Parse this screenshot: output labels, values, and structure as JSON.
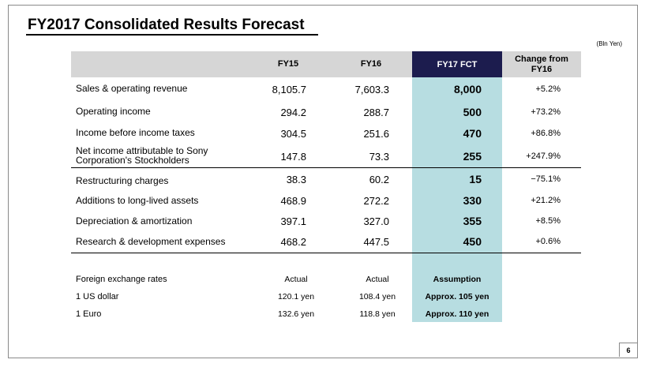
{
  "title": "FY2017 Consolidated Results Forecast",
  "unit": "(Bln Yen)",
  "columns": {
    "fy15": "FY15",
    "fy16": "FY16",
    "fy17": "FY17 FCT",
    "change": "Change from FY16"
  },
  "rows": [
    {
      "label": "Sales & operating revenue",
      "fy15": "8,105.7",
      "fy16": "7,603.3",
      "fy17": "8,000",
      "change": "+5.2%"
    },
    {
      "label": "Operating income",
      "fy15": "294.2",
      "fy16": "288.7",
      "fy17": "500",
      "change": "+73.2%"
    },
    {
      "label": "Income before income taxes",
      "fy15": "304.5",
      "fy16": "251.6",
      "fy17": "470",
      "change": "+86.8%"
    },
    {
      "label": "Net income attributable to Sony Corporation's Stockholders",
      "fy15": "147.8",
      "fy16": "73.3",
      "fy17": "255",
      "change": "+247.9%"
    },
    {
      "label": "Restructuring charges",
      "fy15": "38.3",
      "fy16": "60.2",
      "fy17": "15",
      "change": "−75.1%"
    },
    {
      "label": "Additions to long-lived assets",
      "fy15": "468.9",
      "fy16": "272.2",
      "fy17": "330",
      "change": "+21.2%"
    },
    {
      "label": "Depreciation & amortization",
      "fy15": "397.1",
      "fy16": "327.0",
      "fy17": "355",
      "change": "+8.5%"
    },
    {
      "label": "Research & development expenses",
      "fy15": "468.2",
      "fy16": "447.5",
      "fy17": "450",
      "change": "+0.6%"
    }
  ],
  "fx": {
    "header": {
      "label": "Foreign exchange rates",
      "fy15": "Actual",
      "fy16": "Actual",
      "fy17": "Assumption"
    },
    "rows": [
      {
        "label": "1 US dollar",
        "fy15": "120.1 yen",
        "fy16": "108.4 yen",
        "fy17": "Approx. 105 yen"
      },
      {
        "label": "1 Euro",
        "fy15": "132.6 yen",
        "fy16": "118.8 yen",
        "fy17": "Approx. 110 yen"
      }
    ]
  },
  "page_number": "6",
  "colors": {
    "header_gray": "#d6d6d6",
    "fct_header": "#1c1c4e",
    "fct_band": "#b7dde1"
  }
}
